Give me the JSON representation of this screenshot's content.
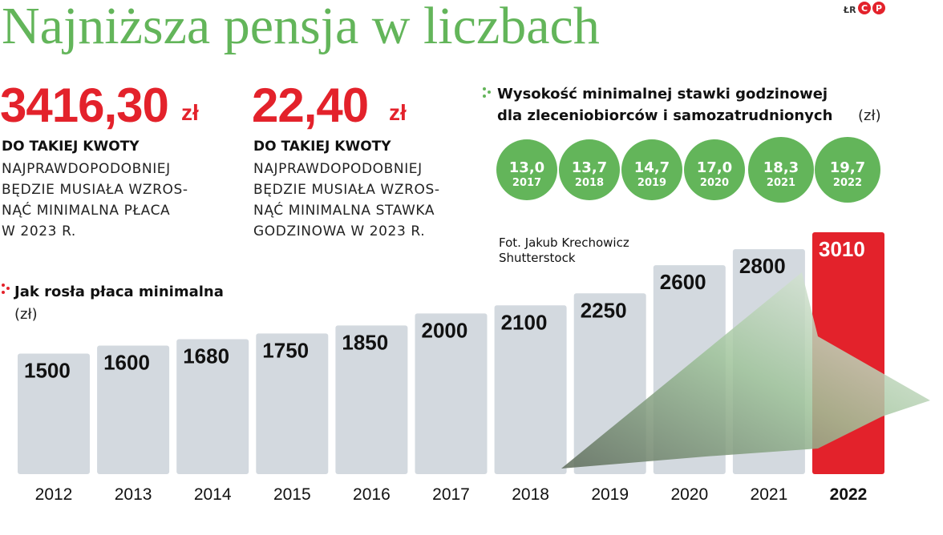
{
  "header": {
    "title": "Najniższa pensja w liczbach",
    "logo": "ŁR",
    "logo_badges": [
      "C",
      "P"
    ]
  },
  "stats": [
    {
      "value": "3416,30",
      "unit": "zł",
      "heading": "DO TAKIEJ KWOTY",
      "lines": [
        "NAJPRAWDOPODOBNIEJ",
        "BĘDZIE MUSIAŁA WZROS-",
        "NĄĆ MINIMALNA PŁACA",
        "W 2023 R."
      ]
    },
    {
      "value": "22,40",
      "unit": "zł",
      "heading": "DO TAKIEJ KWOTY",
      "lines": [
        "NAJPRAWDOPODOBNIEJ",
        "BĘDZIE MUSIAŁA WZROS-",
        "NĄĆ MINIMALNA STAWKA",
        "GODZINOWA W 2023 R."
      ]
    }
  ],
  "photo_credit": [
    "Fot. Jakub Krechowicz",
    "Shutterstock"
  ],
  "chart_data": [
    {
      "type": "bar",
      "title": "Jak rosła płaca minimalna",
      "subtitle": "(zł)",
      "categories": [
        "2012",
        "2013",
        "2014",
        "2015",
        "2016",
        "2017",
        "2018",
        "2019",
        "2020",
        "2021",
        "2022"
      ],
      "values": [
        1500,
        1600,
        1680,
        1750,
        1850,
        2000,
        2100,
        2250,
        2600,
        2800,
        3010
      ],
      "colors": [
        "#d3d9df",
        "#d3d9df",
        "#d3d9df",
        "#d3d9df",
        "#d3d9df",
        "#d3d9df",
        "#d3d9df",
        "#d3d9df",
        "#d3d9df",
        "#d3d9df",
        "#e3222b"
      ]
    },
    {
      "type": "circles",
      "title": [
        "Wysokość minimalnej stawki godzinowej",
        "dla zleceniobiorców i samozatrudnionych"
      ],
      "unit": "(zł)",
      "categories": [
        "2017",
        "2018",
        "2019",
        "2020",
        "2021",
        "2022"
      ],
      "values": [
        13.0,
        13.7,
        14.7,
        17.0,
        18.3,
        19.7
      ],
      "value_labels": [
        "13,0",
        "13,7",
        "14,7",
        "17,0",
        "18,3",
        "19,7"
      ],
      "color": "#63b55a"
    }
  ]
}
